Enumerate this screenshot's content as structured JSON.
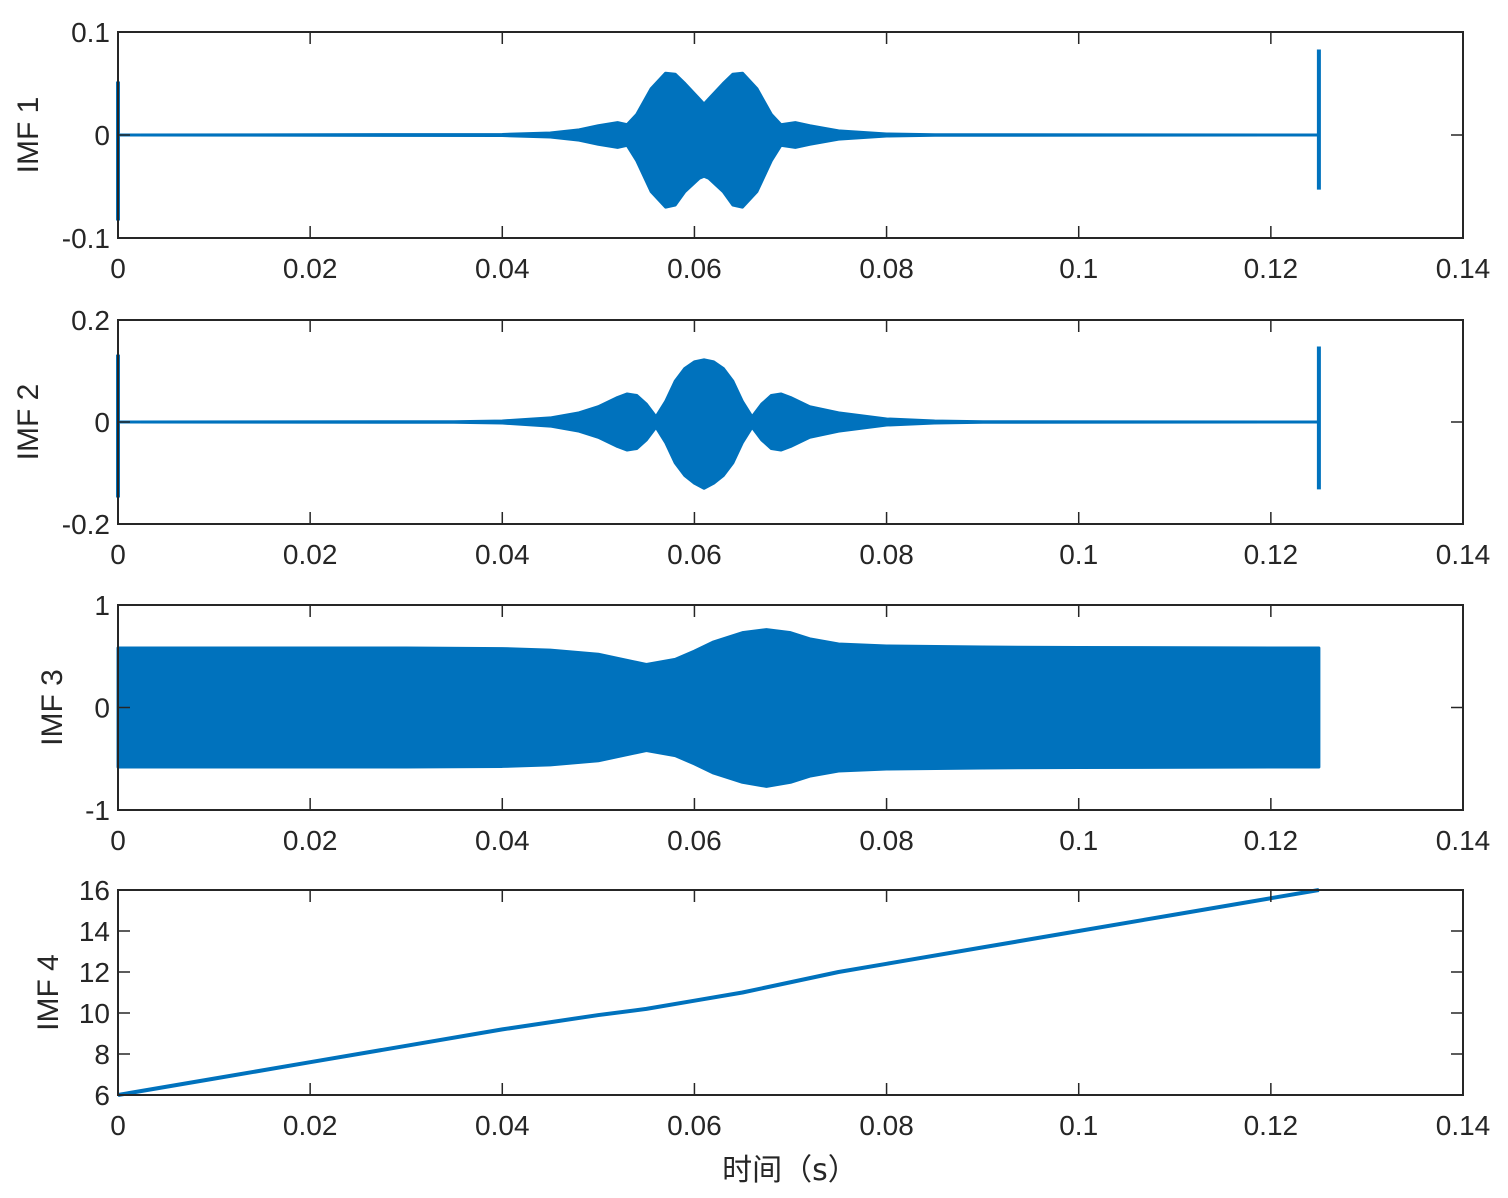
{
  "figure": {
    "xlabel": "时间（s）"
  },
  "colors": {
    "series": "#0072BD",
    "axis": "#262626"
  },
  "chart_data": [
    {
      "type": "line",
      "ylabel": "IMF 1",
      "xlim": [
        0,
        0.14
      ],
      "ylim": [
        -0.1,
        0.1
      ],
      "xticks": [
        0,
        0.02,
        0.04,
        0.06,
        0.08,
        0.1,
        0.12,
        0.14
      ],
      "xtick_labels": [
        "0",
        "0.02",
        "0.04",
        "0.06",
        "0.08",
        "0.1",
        "0.12",
        "0.14"
      ],
      "yticks": [
        -0.1,
        0,
        0.1
      ],
      "ytick_labels": [
        "-0.1",
        "0",
        "0.1"
      ],
      "envelope": {
        "t": [
          0,
          0.04,
          0.045,
          0.048,
          0.05,
          0.052,
          0.053,
          0.054,
          0.0555,
          0.057,
          0.058,
          0.059,
          0.0605,
          0.061,
          0.0615,
          0.063,
          0.064,
          0.065,
          0.0665,
          0.068,
          0.069,
          0.0705,
          0.072,
          0.075,
          0.08,
          0.085,
          0.125
        ],
        "upper": [
          0,
          0.0005,
          0.002,
          0.005,
          0.009,
          0.012,
          0.01,
          0.02,
          0.045,
          0.06,
          0.059,
          0.05,
          0.035,
          0.03,
          0.035,
          0.05,
          0.059,
          0.06,
          0.045,
          0.02,
          0.01,
          0.012,
          0.009,
          0.004,
          0.001,
          0.0003,
          0
        ],
        "lower": [
          0,
          -0.0005,
          -0.002,
          -0.005,
          -0.009,
          -0.012,
          -0.01,
          -0.025,
          -0.055,
          -0.07,
          -0.068,
          -0.055,
          -0.042,
          -0.04,
          -0.042,
          -0.055,
          -0.068,
          -0.07,
          -0.055,
          -0.025,
          -0.01,
          -0.012,
          -0.009,
          -0.004,
          -0.001,
          -0.0003,
          0
        ]
      },
      "spikes": [
        {
          "t": 0,
          "ymin": -0.083,
          "ymax": 0.052
        },
        {
          "t": 0.125,
          "ymin": -0.053,
          "ymax": 0.083
        }
      ]
    },
    {
      "type": "line",
      "ylabel": "IMF 2",
      "xlim": [
        0,
        0.14
      ],
      "ylim": [
        -0.2,
        0.2
      ],
      "xticks": [
        0,
        0.02,
        0.04,
        0.06,
        0.08,
        0.1,
        0.12,
        0.14
      ],
      "xtick_labels": [
        "0",
        "0.02",
        "0.04",
        "0.06",
        "0.08",
        "0.1",
        "0.12",
        "0.14"
      ],
      "yticks": [
        -0.2,
        0,
        0.2
      ],
      "ytick_labels": [
        "-0.2",
        "0",
        "0.2"
      ],
      "envelope": {
        "t": [
          0,
          0.035,
          0.04,
          0.045,
          0.048,
          0.05,
          0.052,
          0.053,
          0.054,
          0.055,
          0.056,
          0.057,
          0.058,
          0.059,
          0.06,
          0.061,
          0.062,
          0.063,
          0.064,
          0.065,
          0.066,
          0.067,
          0.068,
          0.069,
          0.07,
          0.072,
          0.075,
          0.08,
          0.085,
          0.09,
          0.125
        ],
        "upper": [
          0,
          0.0005,
          0.002,
          0.008,
          0.018,
          0.03,
          0.048,
          0.055,
          0.052,
          0.035,
          0.01,
          0.04,
          0.08,
          0.105,
          0.118,
          0.122,
          0.118,
          0.105,
          0.08,
          0.04,
          0.01,
          0.035,
          0.052,
          0.055,
          0.048,
          0.03,
          0.018,
          0.006,
          0.002,
          0.0005,
          0
        ],
        "lower": [
          0,
          -0.0005,
          -0.002,
          -0.008,
          -0.018,
          -0.03,
          -0.048,
          -0.055,
          -0.052,
          -0.035,
          -0.01,
          -0.04,
          -0.08,
          -0.105,
          -0.12,
          -0.13,
          -0.12,
          -0.105,
          -0.08,
          -0.04,
          -0.01,
          -0.035,
          -0.052,
          -0.055,
          -0.048,
          -0.03,
          -0.018,
          -0.006,
          -0.002,
          -0.0005,
          0
        ]
      },
      "spikes": [
        {
          "t": 0,
          "ymin": -0.148,
          "ymax": 0.132
        },
        {
          "t": 0.125,
          "ymin": -0.132,
          "ymax": 0.148
        }
      ]
    },
    {
      "type": "line",
      "ylabel": "IMF 3",
      "xlim": [
        0,
        0.14
      ],
      "ylim": [
        -1,
        1
      ],
      "xticks": [
        0,
        0.02,
        0.04,
        0.06,
        0.08,
        0.1,
        0.12,
        0.14
      ],
      "xtick_labels": [
        "0",
        "0.02",
        "0.04",
        "0.06",
        "0.08",
        "0.1",
        "0.12",
        "0.14"
      ],
      "yticks": [
        -1,
        0,
        1
      ],
      "ytick_labels": [
        "-1",
        "0",
        "1"
      ],
      "envelope": {
        "t": [
          0,
          0.03,
          0.04,
          0.045,
          0.05,
          0.052,
          0.055,
          0.058,
          0.06,
          0.062,
          0.065,
          0.0675,
          0.07,
          0.072,
          0.075,
          0.08,
          0.09,
          0.1,
          0.125
        ],
        "upper": [
          0.58,
          0.58,
          0.575,
          0.56,
          0.52,
          0.48,
          0.42,
          0.47,
          0.55,
          0.64,
          0.73,
          0.76,
          0.73,
          0.67,
          0.62,
          0.6,
          0.59,
          0.585,
          0.58
        ],
        "lower": [
          -0.58,
          -0.58,
          -0.575,
          -0.56,
          -0.52,
          -0.48,
          -0.42,
          -0.47,
          -0.55,
          -0.64,
          -0.73,
          -0.77,
          -0.73,
          -0.67,
          -0.62,
          -0.6,
          -0.59,
          -0.585,
          -0.58
        ]
      },
      "spikes": []
    },
    {
      "type": "line",
      "ylabel": "IMF 4",
      "xlim": [
        0,
        0.14
      ],
      "ylim": [
        6,
        16
      ],
      "xticks": [
        0,
        0.02,
        0.04,
        0.06,
        0.08,
        0.1,
        0.12,
        0.14
      ],
      "xtick_labels": [
        "0",
        "0.02",
        "0.04",
        "0.06",
        "0.08",
        "0.1",
        "0.12",
        "0.14"
      ],
      "yticks": [
        6,
        8,
        10,
        12,
        14,
        16
      ],
      "ytick_labels": [
        "6",
        "8",
        "10",
        "12",
        "14",
        "16"
      ],
      "x": [
        0,
        0.01,
        0.02,
        0.03,
        0.04,
        0.05,
        0.055,
        0.06,
        0.065,
        0.07,
        0.075,
        0.08,
        0.09,
        0.1,
        0.11,
        0.12,
        0.125
      ],
      "y": [
        6.0,
        6.8,
        7.6,
        8.4,
        9.2,
        9.9,
        10.2,
        10.6,
        11.0,
        11.5,
        12.0,
        12.4,
        13.2,
        14.0,
        14.8,
        15.6,
        16.0
      ]
    }
  ]
}
